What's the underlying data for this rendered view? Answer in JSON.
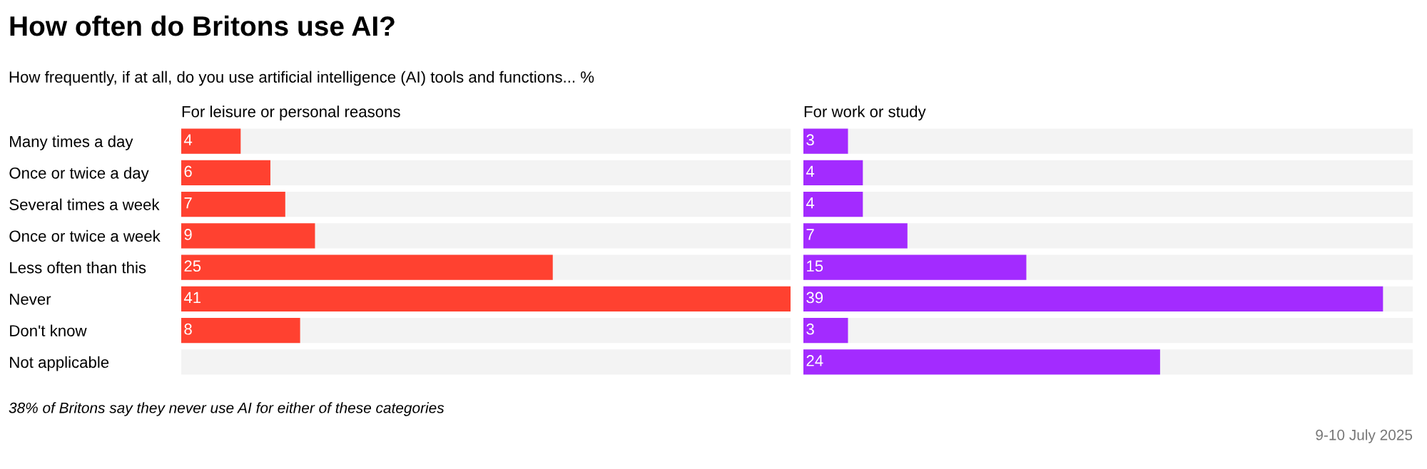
{
  "chart_data": [
    {
      "type": "bar",
      "orientation": "horizontal",
      "title": "How often do Britons use AI?",
      "subtitle": "How frequently, if at all, do you use artificial intelligence (AI) tools and functions... %",
      "categories": [
        "Many times a day",
        "Once or twice a day",
        "Several times a week",
        "Once or twice a week",
        "Less often than this",
        "Never",
        "Don't know",
        "Not applicable"
      ],
      "series": [
        {
          "name": "For leisure or personal reasons",
          "color": "#ff4130",
          "values": [
            4,
            6,
            7,
            9,
            25,
            41,
            8,
            null
          ]
        }
      ],
      "xlim": [
        0,
        41
      ],
      "data_labels": true,
      "tick_labels": "y",
      "grid": false,
      "legend": false,
      "annotations": [
        "38% of Britons say they never use AI for either of these categories"
      ]
    },
    {
      "type": "bar",
      "orientation": "horizontal",
      "categories": [
        null,
        null,
        null,
        null,
        null,
        null,
        null,
        null
      ],
      "series": [
        {
          "name": "For work or study",
          "color": "#a32bff",
          "values": [
            3,
            4,
            4,
            7,
            15,
            39,
            3,
            24
          ]
        }
      ],
      "xlim": [
        0,
        41
      ],
      "data_labels": true,
      "tick_labels": false,
      "grid": false,
      "legend": false,
      "annotations": [
        "9-10 July 2025"
      ]
    }
  ]
}
